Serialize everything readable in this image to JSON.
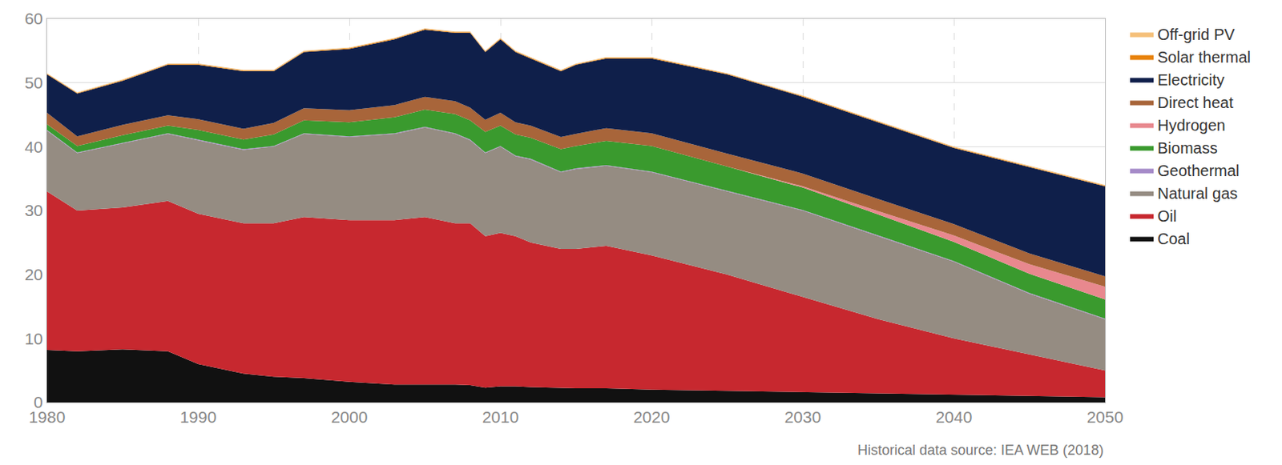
{
  "chart_data": {
    "type": "area",
    "stacked": true,
    "grid": true,
    "legend": "right",
    "source": "Historical data source: IEA WEB (2018)",
    "x": [
      1980,
      1982,
      1985,
      1988,
      1990,
      1993,
      1995,
      1997,
      2000,
      2003,
      2005,
      2007,
      2008,
      2009,
      2010,
      2011,
      2012,
      2014,
      2015,
      2017,
      2020,
      2025,
      2030,
      2035,
      2040,
      2045,
      2050
    ],
    "xlim": [
      1980,
      2050
    ],
    "xticks": [
      1980,
      1990,
      2000,
      2010,
      2020,
      2030,
      2040,
      2050
    ],
    "ylim": [
      0,
      60
    ],
    "yticks": [
      0,
      10,
      20,
      30,
      40,
      50,
      60
    ],
    "series": [
      {
        "name": "Coal",
        "color": "#111111",
        "values": [
          8.2,
          8,
          8.3,
          8,
          6,
          4.5,
          4,
          3.8,
          3.2,
          2.8,
          2.8,
          2.8,
          2.7,
          2.3,
          2.5,
          2.5,
          2.4,
          2.3,
          2.2,
          2.2,
          2.0,
          1.8,
          1.6,
          1.4,
          1.2,
          1.0,
          0.8
        ]
      },
      {
        "name": "Oil",
        "color": "#c7282f",
        "values": [
          24.8,
          22,
          22.2,
          23.5,
          23.5,
          23.5,
          24,
          25.2,
          25.3,
          25.7,
          26.2,
          25.2,
          25.3,
          23.7,
          24,
          23.5,
          22.6,
          21.7,
          21.8,
          22.3,
          21,
          18.2,
          14.9,
          11.6,
          8.8,
          6.5,
          4.2
        ]
      },
      {
        "name": "Natural gas",
        "color": "#958c82",
        "values": [
          9.5,
          9,
          10,
          10.5,
          11.5,
          11.5,
          12,
          13,
          13,
          13.5,
          14,
          14,
          13,
          13,
          13.5,
          12.5,
          13,
          12,
          12.5,
          12.5,
          13,
          13,
          13.5,
          13,
          12,
          9.5,
          8
        ]
      },
      {
        "name": "Geothermal",
        "color": "#a58ac8",
        "values": [
          0.1,
          0.1,
          0.1,
          0.1,
          0.1,
          0.1,
          0.1,
          0.1,
          0.1,
          0.1,
          0.1,
          0.1,
          0.1,
          0.1,
          0.1,
          0.1,
          0.1,
          0.1,
          0.1,
          0.1,
          0.1,
          0.1,
          0.1,
          0.1,
          0.1,
          0.1,
          0.1
        ]
      },
      {
        "name": "Biomass",
        "color": "#3a9a2e",
        "values": [
          0.9,
          1,
          1.2,
          1.2,
          1.5,
          1.5,
          1.8,
          2,
          2.2,
          2.5,
          2.7,
          3,
          3,
          3.2,
          3.2,
          3.3,
          3.3,
          3.5,
          3.5,
          3.8,
          4,
          3.8,
          3.5,
          3.3,
          3,
          3,
          3
        ]
      },
      {
        "name": "Hydrogen",
        "color": "#e8888e",
        "values": [
          0,
          0,
          0,
          0,
          0,
          0,
          0,
          0,
          0,
          0,
          0,
          0,
          0,
          0,
          0,
          0,
          0,
          0,
          0,
          0,
          0,
          0,
          0.2,
          0.5,
          1,
          1.5,
          2
        ]
      },
      {
        "name": "Direct heat",
        "color": "#a8653a",
        "values": [
          1.8,
          1.5,
          1.6,
          1.6,
          1.7,
          1.7,
          1.8,
          1.9,
          1.9,
          1.9,
          2,
          2,
          2,
          1.9,
          2,
          1.9,
          1.9,
          1.9,
          1.9,
          2,
          2,
          2,
          2,
          1.9,
          1.8,
          1.7,
          1.6
        ]
      },
      {
        "name": "Electricity",
        "color": "#0f1f4a",
        "values": [
          6.0,
          6.7,
          6.9,
          7.9,
          8.5,
          9,
          8.1,
          8.8,
          9.6,
          10.3,
          10.5,
          10.7,
          11.7,
          10.6,
          11.5,
          11,
          10.5,
          10.3,
          10.8,
          10.9,
          11.7,
          12.4,
          12,
          12,
          11.9,
          13.5,
          14.1
        ]
      },
      {
        "name": "Solar thermal",
        "color": "#e8820c",
        "values": [
          0.1,
          0.1,
          0.1,
          0.1,
          0.1,
          0.1,
          0.1,
          0.1,
          0.1,
          0.1,
          0.1,
          0.1,
          0.1,
          0.1,
          0.1,
          0.1,
          0.1,
          0.1,
          0.1,
          0.1,
          0.1,
          0.1,
          0.1,
          0.1,
          0.1,
          0.1,
          0.1
        ]
      },
      {
        "name": "Off-grid PV",
        "color": "#f5c07a",
        "values": [
          0.1,
          0.1,
          0.1,
          0.1,
          0.1,
          0.1,
          0.1,
          0.1,
          0.1,
          0.1,
          0.1,
          0.1,
          0.1,
          0.1,
          0.1,
          0.1,
          0.1,
          0.1,
          0.1,
          0.1,
          0.1,
          0.1,
          0.1,
          0.1,
          0.1,
          0.1,
          0.1
        ]
      }
    ]
  }
}
